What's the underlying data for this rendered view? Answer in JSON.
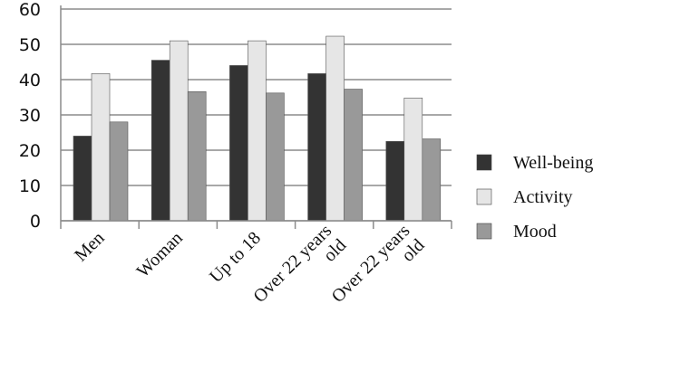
{
  "chart_data": {
    "type": "bar",
    "categories": [
      [
        "Men"
      ],
      [
        "Woman"
      ],
      [
        "Up to 18"
      ],
      [
        "Over 22 years",
        "old"
      ],
      [
        "Over 22 years",
        "old"
      ]
    ],
    "series": [
      {
        "name": "Well-being",
        "values": [
          24,
          45.5,
          44,
          41.7,
          22.5
        ],
        "color": "#333333"
      },
      {
        "name": "Activity",
        "values": [
          41.7,
          51,
          51,
          52.3,
          34.8
        ],
        "color": "#e6e6e6"
      },
      {
        "name": "Mood",
        "values": [
          28,
          36.6,
          36.2,
          37.3,
          23.2
        ],
        "color": "#999999"
      }
    ],
    "ylim": [
      0,
      60
    ],
    "yticks": [
      "0",
      "10",
      "20",
      "30",
      "40",
      "50",
      "60"
    ],
    "grid": true,
    "legend_position": "right",
    "title": "",
    "xlabel": "",
    "ylabel": ""
  }
}
